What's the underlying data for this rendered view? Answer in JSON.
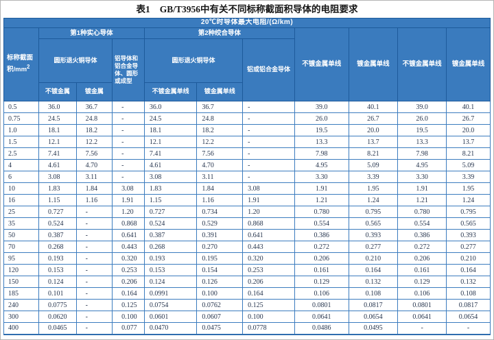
{
  "title": {
    "prefix": "表1",
    "text": "GB/T3956中有关不同标称截面积导体的电阻要求"
  },
  "colors": {
    "header_bg": "#3a7bbe",
    "header_border": "#1d5a9b",
    "grid_border": "#3a7bbe",
    "header_text": "#ffffff",
    "data_text": "#26354e",
    "frame": "#b3b3b3"
  },
  "table": {
    "unit_header": "20℃时导体最大电阻/(Ω/km)",
    "area_col": {
      "label": "标称截面积/mm",
      "sup": "2"
    },
    "solid_group": {
      "label": "第1种实心导体",
      "round_copper": "圆形退火铜导体",
      "unplated": "不镀金属",
      "plated": "镀金属",
      "aluminum": "铝导体和铝合金导体、圆形或成型"
    },
    "stranded_group": {
      "label": "第2种绞合导体",
      "round_copper": "圆形退火铜导体",
      "unplated_wire": "不镀金属单线",
      "plated_wire": "镀金属单线",
      "aluminum": "铝或铝合金导体"
    },
    "flexible_cols": [
      "不镀金属单线",
      "镀金属单线",
      "不镀金属单线",
      "镀金属单线"
    ],
    "rows": [
      [
        "0.5",
        "36.0",
        "36.7",
        "-",
        "36.0",
        "36.7",
        "-",
        "39.0",
        "40.1",
        "39.0",
        "40.1"
      ],
      [
        "0.75",
        "24.5",
        "24.8",
        "-",
        "24.5",
        "24.8",
        "-",
        "26.0",
        "26.7",
        "26.0",
        "26.7"
      ],
      [
        "1.0",
        "18.1",
        "18.2",
        "-",
        "18.1",
        "18.2",
        "-",
        "19.5",
        "20.0",
        "19.5",
        "20.0"
      ],
      [
        "1.5",
        "12.1",
        "12.2",
        "-",
        "12.1",
        "12.2",
        "-",
        "13.3",
        "13.7",
        "13.3",
        "13.7"
      ],
      [
        "2.5",
        "7.41",
        "7.56",
        "-",
        "7.41",
        "7.56",
        "-",
        "7.98",
        "8.21",
        "7.98",
        "8.21"
      ],
      [
        "4",
        "4.61",
        "4.70",
        "-",
        "4.61",
        "4.70",
        "-",
        "4.95",
        "5.09",
        "4.95",
        "5.09"
      ],
      [
        "6",
        "3.08",
        "3.11",
        "-",
        "3.08",
        "3.11",
        "-",
        "3.30",
        "3.39",
        "3.30",
        "3.39"
      ],
      [
        "10",
        "1.83",
        "1.84",
        "3.08",
        "1.83",
        "1.84",
        "3.08",
        "1.91",
        "1.95",
        "1.91",
        "1.95"
      ],
      [
        "16",
        "1.15",
        "1.16",
        "1.91",
        "1.15",
        "1.16",
        "1.91",
        "1.21",
        "1.24",
        "1.21",
        "1.24"
      ],
      [
        "25",
        "0.727",
        "-",
        "1.20",
        "0.727",
        "0.734",
        "1.20",
        "0.780",
        "0.795",
        "0.780",
        "0.795"
      ],
      [
        "35",
        "0.524",
        "-",
        "0.868",
        "0.524",
        "0.529",
        "0.868",
        "0.554",
        "0.565",
        "0.554",
        "0.565"
      ],
      [
        "50",
        "0.387",
        "-",
        "0.641",
        "0.387",
        "0.391",
        "0.641",
        "0.386",
        "0.393",
        "0.386",
        "0.393"
      ],
      [
        "70",
        "0.268",
        "-",
        "0.443",
        "0.268",
        "0.270",
        "0.443",
        "0.272",
        "0.277",
        "0.272",
        "0.277"
      ],
      [
        "95",
        "0.193",
        "-",
        "0.320",
        "0.193",
        "0.195",
        "0.320",
        "0.206",
        "0.210",
        "0.206",
        "0.210"
      ],
      [
        "120",
        "0.153",
        "-",
        "0.253",
        "0.153",
        "0.154",
        "0.253",
        "0.161",
        "0.164",
        "0.161",
        "0.164"
      ],
      [
        "150",
        "0.124",
        "-",
        "0.206",
        "0.124",
        "0.126",
        "0.206",
        "0.129",
        "0.132",
        "0.129",
        "0.132"
      ],
      [
        "185",
        "0.101",
        "-",
        "0.164",
        "0.0991",
        "0.100",
        "0.164",
        "0.106",
        "0.108",
        "0.106",
        "0.108"
      ],
      [
        "240",
        "0.0775",
        "-",
        "0.125",
        "0.0754",
        "0.0762",
        "0.125",
        "0.0801",
        "0.0817",
        "0.0801",
        "0.0817"
      ],
      [
        "300",
        "0.0620",
        "-",
        "0.100",
        "0.0601",
        "0.0607",
        "0.100",
        "0.0641",
        "0.0654",
        "0.0641",
        "0.0654"
      ],
      [
        "400",
        "0.0465",
        "-",
        "0.077",
        "0.0470",
        "0.0475",
        "0.0778",
        "0.0486",
        "0.0495",
        "-",
        "-"
      ]
    ]
  }
}
